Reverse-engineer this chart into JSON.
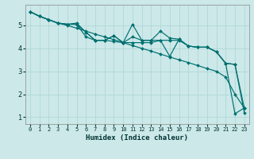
{
  "xlabel": "Humidex (Indice chaleur)",
  "background_color": "#cce8e8",
  "grid_color": "#b0d8d8",
  "line_color": "#007070",
  "xlim": [
    -0.5,
    23.5
  ],
  "ylim": [
    0.7,
    5.9
  ],
  "xticks": [
    0,
    1,
    2,
    3,
    4,
    5,
    6,
    7,
    8,
    9,
    10,
    11,
    12,
    13,
    14,
    15,
    16,
    17,
    18,
    19,
    20,
    21,
    22,
    23
  ],
  "yticks": [
    1,
    2,
    3,
    4,
    5
  ],
  "series": [
    {
      "x": [
        0,
        1,
        2,
        3,
        4,
        5,
        6,
        7,
        8,
        9,
        10,
        11,
        12,
        13,
        14,
        15,
        16,
        17,
        18,
        19,
        20,
        21,
        22,
        23
      ],
      "y": [
        5.6,
        5.4,
        5.25,
        5.1,
        5.0,
        4.88,
        4.75,
        4.62,
        4.5,
        4.38,
        4.25,
        4.12,
        4.0,
        3.88,
        3.75,
        3.62,
        3.5,
        3.38,
        3.25,
        3.12,
        3.0,
        2.75,
        2.0,
        1.4
      ]
    },
    {
      "x": [
        0,
        1,
        2,
        3,
        4,
        5,
        6,
        7,
        8,
        9,
        10,
        11,
        12,
        13,
        14,
        15,
        16,
        17,
        18,
        19,
        20,
        21,
        22,
        23
      ],
      "y": [
        5.6,
        5.4,
        5.25,
        5.1,
        5.05,
        5.1,
        4.7,
        4.35,
        4.35,
        4.55,
        4.25,
        5.05,
        4.35,
        4.35,
        4.75,
        4.45,
        4.4,
        4.1,
        4.05,
        4.05,
        3.85,
        3.35,
        3.3,
        1.4
      ]
    },
    {
      "x": [
        0,
        1,
        2,
        3,
        4,
        5,
        6,
        7,
        8,
        9,
        10,
        11,
        12,
        13,
        14,
        15,
        16,
        17,
        18,
        19,
        20,
        21,
        22,
        23
      ],
      "y": [
        5.6,
        5.4,
        5.25,
        5.1,
        5.05,
        5.05,
        4.7,
        4.35,
        4.35,
        4.55,
        4.25,
        4.5,
        4.35,
        4.35,
        4.35,
        3.65,
        4.4,
        4.1,
        4.05,
        4.05,
        3.85,
        3.35,
        3.3,
        1.2
      ]
    },
    {
      "x": [
        0,
        1,
        2,
        3,
        4,
        5,
        6,
        7,
        8,
        9,
        10,
        11,
        12,
        13,
        14,
        15,
        16,
        17,
        18,
        19,
        20,
        21,
        22,
        23
      ],
      "y": [
        5.6,
        5.4,
        5.25,
        5.1,
        5.05,
        5.05,
        4.5,
        4.35,
        4.35,
        4.3,
        4.25,
        4.25,
        4.25,
        4.25,
        4.35,
        4.35,
        4.35,
        4.1,
        4.05,
        4.05,
        3.85,
        3.35,
        1.15,
        1.4
      ]
    }
  ]
}
